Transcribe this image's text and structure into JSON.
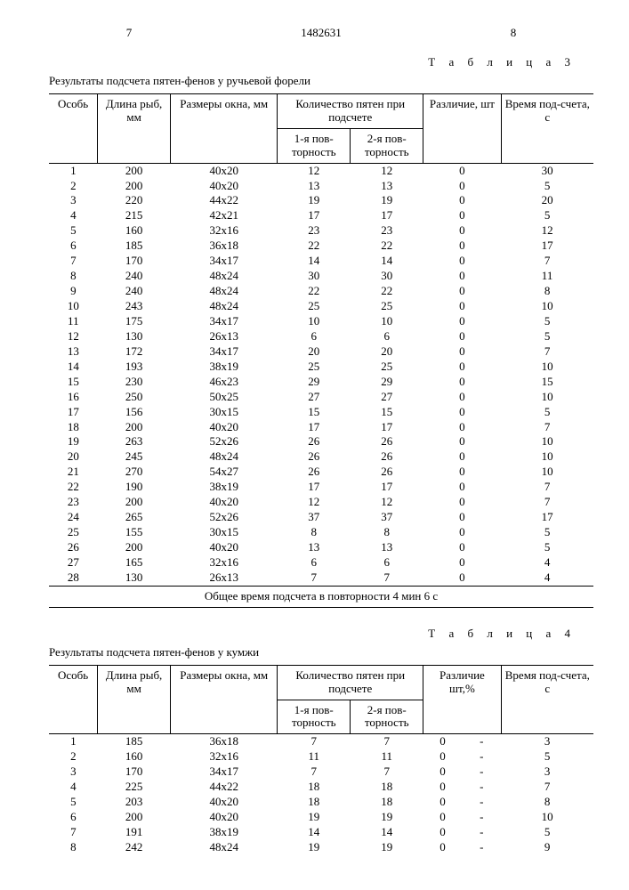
{
  "doc": {
    "page_left": "7",
    "doc_number": "1482631",
    "page_right": "8"
  },
  "t3": {
    "label": "Т а б л и ц а  3",
    "caption": "Результаты подсчета пятен-фенов у ручьевой форели",
    "head": {
      "osob": "Особь",
      "dlina": "Длина рыб, мм",
      "okno": "Размеры окна, мм",
      "count_group": "Количество пятен при подсчете",
      "p1": "1-я пов-торность",
      "p2": "2-я пов-торность",
      "razl": "Различие, шт",
      "vrem": "Время под-счета, с"
    },
    "rows": [
      {
        "n": "1",
        "l": "200",
        "o": "40х20",
        "a": "12",
        "b": "12",
        "d": "0",
        "t": "30"
      },
      {
        "n": "2",
        "l": "200",
        "o": "40х20",
        "a": "13",
        "b": "13",
        "d": "0",
        "t": "5"
      },
      {
        "n": "3",
        "l": "220",
        "o": "44х22",
        "a": "19",
        "b": "19",
        "d": "0",
        "t": "20"
      },
      {
        "n": "4",
        "l": "215",
        "o": "42х21",
        "a": "17",
        "b": "17",
        "d": "0",
        "t": "5"
      },
      {
        "n": "5",
        "l": "160",
        "o": "32х16",
        "a": "23",
        "b": "23",
        "d": "0",
        "t": "12"
      },
      {
        "n": "6",
        "l": "185",
        "o": "36х18",
        "a": "22",
        "b": "22",
        "d": "0",
        "t": "17"
      },
      {
        "n": "7",
        "l": "170",
        "o": "34х17",
        "a": "14",
        "b": "14",
        "d": "0",
        "t": "7"
      },
      {
        "n": "8",
        "l": "240",
        "o": "48х24",
        "a": "30",
        "b": "30",
        "d": "0",
        "t": "11"
      },
      {
        "n": "9",
        "l": "240",
        "o": "48х24",
        "a": "22",
        "b": "22",
        "d": "0",
        "t": "8"
      },
      {
        "n": "10",
        "l": "243",
        "o": "48х24",
        "a": "25",
        "b": "25",
        "d": "0",
        "t": "10"
      },
      {
        "n": "11",
        "l": "175",
        "o": "34х17",
        "a": "10",
        "b": "10",
        "d": "0",
        "t": "5"
      },
      {
        "n": "12",
        "l": "130",
        "o": "26х13",
        "a": "6",
        "b": "6",
        "d": "0",
        "t": "5"
      },
      {
        "n": "13",
        "l": "172",
        "o": "34х17",
        "a": "20",
        "b": "20",
        "d": "0",
        "t": "7"
      },
      {
        "n": "14",
        "l": "193",
        "o": "38х19",
        "a": "25",
        "b": "25",
        "d": "0",
        "t": "10"
      },
      {
        "n": "15",
        "l": "230",
        "o": "46х23",
        "a": "29",
        "b": "29",
        "d": "0",
        "t": "15"
      },
      {
        "n": "16",
        "l": "250",
        "o": "50х25",
        "a": "27",
        "b": "27",
        "d": "0",
        "t": "10"
      },
      {
        "n": "17",
        "l": "156",
        "o": "30х15",
        "a": "15",
        "b": "15",
        "d": "0",
        "t": "5"
      },
      {
        "n": "18",
        "l": "200",
        "o": "40х20",
        "a": "17",
        "b": "17",
        "d": "0",
        "t": "7"
      },
      {
        "n": "19",
        "l": "263",
        "o": "52х26",
        "a": "26",
        "b": "26",
        "d": "0",
        "t": "10"
      },
      {
        "n": "20",
        "l": "245",
        "o": "48х24",
        "a": "26",
        "b": "26",
        "d": "0",
        "t": "10"
      },
      {
        "n": "21",
        "l": "270",
        "o": "54х27",
        "a": "26",
        "b": "26",
        "d": "0",
        "t": "10"
      },
      {
        "n": "22",
        "l": "190",
        "o": "38х19",
        "a": "17",
        "b": "17",
        "d": "0",
        "t": "7"
      },
      {
        "n": "23",
        "l": "200",
        "o": "40х20",
        "a": "12",
        "b": "12",
        "d": "0",
        "t": "7"
      },
      {
        "n": "24",
        "l": "265",
        "o": "52х26",
        "a": "37",
        "b": "37",
        "d": "0",
        "t": "17"
      },
      {
        "n": "25",
        "l": "155",
        "o": "30х15",
        "a": "8",
        "b": "8",
        "d": "0",
        "t": "5"
      },
      {
        "n": "26",
        "l": "200",
        "o": "40х20",
        "a": "13",
        "b": "13",
        "d": "0",
        "t": "5"
      },
      {
        "n": "27",
        "l": "165",
        "o": "32х16",
        "a": "6",
        "b": "6",
        "d": "0",
        "t": "4"
      },
      {
        "n": "28",
        "l": "130",
        "o": "26х13",
        "a": "7",
        "b": "7",
        "d": "0",
        "t": "4"
      }
    ],
    "footer": "Общее время подсчета в повторности 4 мин 6 с"
  },
  "t4": {
    "label": "Т а б л и ц а  4",
    "caption": "Результаты подсчета пятен-фенов у кумжи",
    "head": {
      "osob": "Особь",
      "dlina": "Длина рыб, мм",
      "okno": "Размеры окна, мм",
      "count_group": "Количество пятен при подсчете",
      "p1": "1-я пов-торность",
      "p2": "2-я пов-торность",
      "razl": "Различие шт,%",
      "vrem": "Время под-счета, с"
    },
    "rows": [
      {
        "n": "1",
        "l": "185",
        "o": "36х18",
        "a": "7",
        "b": "7",
        "d": "0",
        "p": "-",
        "t": "3"
      },
      {
        "n": "2",
        "l": "160",
        "o": "32х16",
        "a": "11",
        "b": "11",
        "d": "0",
        "p": "-",
        "t": "5"
      },
      {
        "n": "3",
        "l": "170",
        "o": "34х17",
        "a": "7",
        "b": "7",
        "d": "0",
        "p": "-",
        "t": "3"
      },
      {
        "n": "4",
        "l": "225",
        "o": "44х22",
        "a": "18",
        "b": "18",
        "d": "0",
        "p": "-",
        "t": "7"
      },
      {
        "n": "5",
        "l": "203",
        "o": "40х20",
        "a": "18",
        "b": "18",
        "d": "0",
        "p": "-",
        "t": "8"
      },
      {
        "n": "6",
        "l": "200",
        "o": "40х20",
        "a": "19",
        "b": "19",
        "d": "0",
        "p": "-",
        "t": "10"
      },
      {
        "n": "7",
        "l": "191",
        "o": "38х19",
        "a": "14",
        "b": "14",
        "d": "0",
        "p": "-",
        "t": "5"
      },
      {
        "n": "8",
        "l": "242",
        "o": "48х24",
        "a": "19",
        "b": "19",
        "d": "0",
        "p": "-",
        "t": "9"
      }
    ]
  }
}
